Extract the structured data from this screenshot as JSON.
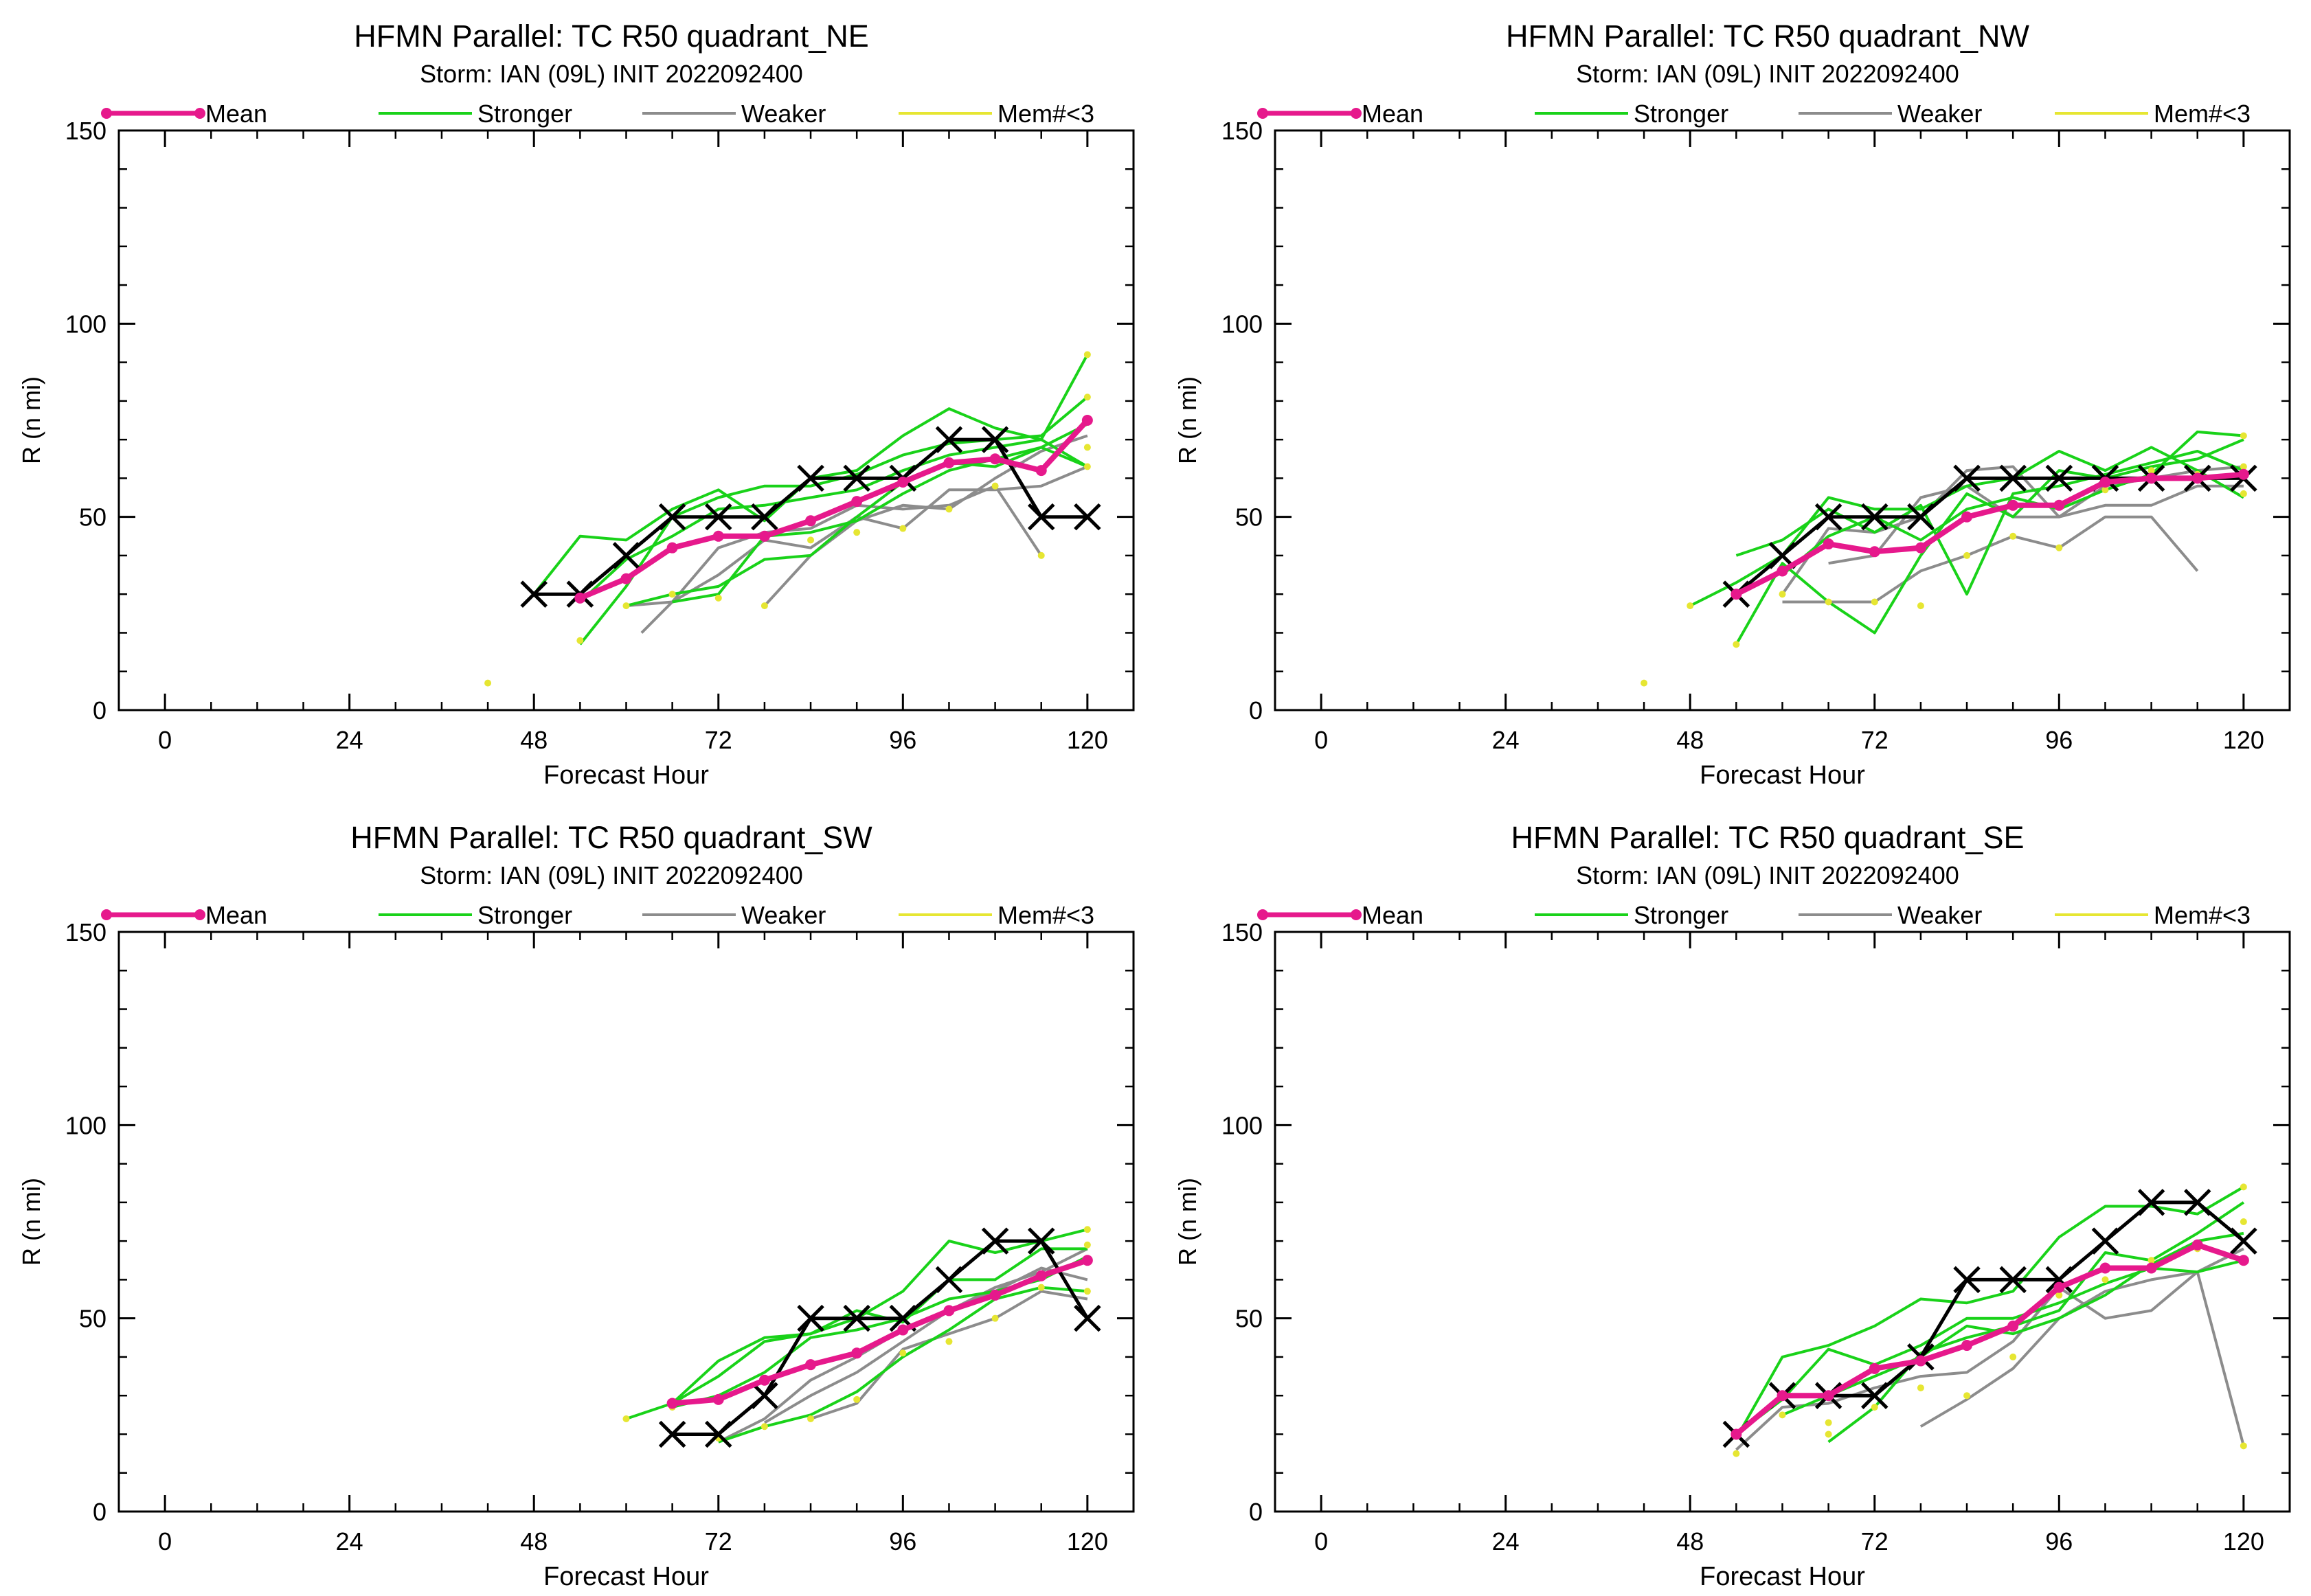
{
  "figure": {
    "xlabel": "Forecast Hour",
    "ylabel": "R (n mi)"
  },
  "colors": {
    "mean": "#e6198c",
    "stronger": "#19d219",
    "weaker": "#8c8c8c",
    "mem": "#e6e632",
    "best_track": "#000000"
  },
  "legend": [
    {
      "key": "mean",
      "label": "Mean"
    },
    {
      "key": "stronger",
      "label": "Stronger"
    },
    {
      "key": "weaker",
      "label": "Weaker"
    },
    {
      "key": "mem",
      "label": "Mem#<3"
    }
  ],
  "chart_data": [
    {
      "type": "line",
      "title": "HFMN Parallel: TC  R50 quadrant_NE",
      "subtitle": "Storm: IAN (09L) INIT 2022092400",
      "xlabel": "Forecast Hour",
      "ylabel": "R (n mi)",
      "xlim": [
        -6,
        126
      ],
      "ylim": [
        0,
        150
      ],
      "xticks": [
        0,
        24,
        48,
        72,
        96,
        120
      ],
      "yticks": [
        0,
        50,
        100,
        150
      ],
      "mean": {
        "x": [
          54,
          60,
          66,
          72,
          78,
          84,
          90,
          96,
          102,
          108,
          114,
          120
        ],
        "y": [
          29,
          34,
          42,
          45,
          45,
          49,
          54,
          59,
          64,
          65,
          62,
          75
        ]
      },
      "best_track": {
        "x": [
          48,
          54,
          60,
          66,
          72,
          78,
          84,
          90,
          96,
          102,
          108,
          114,
          120
        ],
        "y": [
          30,
          30,
          40,
          50,
          50,
          50,
          60,
          60,
          60,
          70,
          70,
          50,
          50
        ]
      },
      "stronger": [
        {
          "x": [
            48,
            54,
            60,
            66,
            72,
            78,
            84,
            90,
            96,
            102,
            108,
            114,
            120
          ],
          "y": [
            30,
            45,
            44,
            52,
            57,
            49,
            60,
            62,
            71,
            78,
            73,
            70,
            92
          ]
        },
        {
          "x": [
            54,
            60,
            66,
            72,
            78,
            84,
            90,
            96,
            102,
            108,
            114,
            120
          ],
          "y": [
            17,
            32,
            50,
            55,
            58,
            58,
            61,
            66,
            69,
            70,
            71,
            81
          ]
        },
        {
          "x": [
            54,
            60,
            66,
            72,
            78,
            84,
            90,
            96,
            102,
            108,
            114,
            120
          ],
          "y": [
            28,
            39,
            45,
            52,
            53,
            55,
            57,
            62,
            66,
            68,
            70,
            63
          ]
        },
        {
          "x": [
            60,
            66,
            72,
            78,
            84,
            90,
            96,
            102,
            108,
            114,
            120
          ],
          "y": [
            27,
            30,
            32,
            39,
            40,
            50,
            59,
            64,
            63,
            68,
            74
          ]
        },
        {
          "x": [
            66,
            72,
            78,
            84,
            90,
            96,
            102,
            108,
            114,
            120
          ],
          "y": [
            28,
            30,
            45,
            46,
            49,
            56,
            62,
            65,
            68,
            63
          ]
        }
      ],
      "weaker": [
        {
          "x": [
            60,
            66,
            72,
            78,
            84,
            90,
            96,
            102,
            108,
            114
          ],
          "y": [
            27,
            28,
            42,
            46,
            47,
            53,
            52,
            53,
            58,
            40
          ]
        },
        {
          "x": [
            62,
            66,
            72,
            78,
            84,
            90,
            96,
            102,
            108,
            114,
            120
          ],
          "y": [
            20,
            28,
            35,
            44,
            42,
            50,
            47,
            57,
            57,
            58,
            63
          ]
        },
        {
          "x": [
            78,
            84,
            90,
            96,
            102,
            108,
            114,
            120
          ],
          "y": [
            27,
            40,
            49,
            53,
            52,
            60,
            67,
            71
          ]
        }
      ],
      "mem_points": {
        "x": [
          42,
          54,
          60,
          66,
          72,
          78,
          84,
          90,
          96,
          102,
          108,
          114,
          120,
          120,
          120,
          120
        ],
        "y": [
          7,
          18,
          27,
          30,
          29,
          27,
          44,
          46,
          47,
          52,
          58,
          40,
          92,
          81,
          63,
          68
        ]
      }
    },
    {
      "type": "line",
      "title": "HFMN Parallel: TC  R50 quadrant_NW",
      "subtitle": "Storm: IAN (09L) INIT 2022092400",
      "xlabel": "Forecast Hour",
      "ylabel": "R (n mi)",
      "xlim": [
        -6,
        126
      ],
      "ylim": [
        0,
        150
      ],
      "xticks": [
        0,
        24,
        48,
        72,
        96,
        120
      ],
      "yticks": [
        0,
        50,
        100,
        150
      ],
      "mean": {
        "x": [
          54,
          60,
          66,
          72,
          78,
          84,
          90,
          96,
          102,
          108,
          114,
          120
        ],
        "y": [
          30,
          36,
          43,
          41,
          42,
          50,
          53,
          53,
          59,
          60,
          60,
          61
        ]
      },
      "best_track": {
        "x": [
          54,
          60,
          66,
          72,
          78,
          84,
          90,
          96,
          102,
          108,
          114,
          120
        ],
        "y": [
          30,
          40,
          50,
          50,
          50,
          60,
          60,
          60,
          60,
          60,
          60,
          60
        ]
      },
      "stronger": [
        {
          "x": [
            48,
            54,
            60,
            66,
            72,
            78,
            84,
            90,
            96,
            102,
            108,
            114,
            120
          ],
          "y": [
            27,
            33,
            40,
            55,
            52,
            52,
            58,
            60,
            67,
            62,
            68,
            62,
            55
          ]
        },
        {
          "x": [
            54,
            60,
            66,
            72,
            78,
            84,
            90,
            96,
            102,
            108,
            114,
            120
          ],
          "y": [
            40,
            44,
            52,
            46,
            53,
            30,
            56,
            58,
            61,
            64,
            67,
            62
          ]
        },
        {
          "x": [
            54,
            60,
            66,
            72,
            78,
            84,
            90,
            96,
            102,
            108,
            114,
            120
          ],
          "y": [
            17,
            38,
            28,
            20,
            40,
            56,
            50,
            62,
            60,
            63,
            65,
            70
          ]
        },
        {
          "x": [
            60,
            66,
            72,
            78,
            84,
            90,
            96,
            102,
            108,
            114,
            120
          ],
          "y": [
            35,
            45,
            50,
            44,
            52,
            55,
            52,
            57,
            61,
            72,
            71
          ]
        }
      ],
      "weaker": [
        {
          "x": [
            60,
            66,
            72,
            78,
            84,
            90,
            96,
            102,
            108,
            114
          ],
          "y": [
            28,
            28,
            28,
            36,
            40,
            45,
            42,
            50,
            50,
            36
          ]
        },
        {
          "x": [
            60,
            66,
            72,
            78,
            84,
            90,
            96,
            102,
            108,
            114,
            120
          ],
          "y": [
            30,
            47,
            46,
            50,
            62,
            63,
            50,
            53,
            53,
            58,
            58
          ]
        },
        {
          "x": [
            66,
            72,
            78,
            84,
            90,
            96,
            102,
            108,
            114,
            120
          ],
          "y": [
            38,
            40,
            55,
            58,
            50,
            50,
            58,
            60,
            62,
            63
          ]
        }
      ],
      "mem_points": {
        "x": [
          42,
          48,
          54,
          60,
          66,
          72,
          78,
          84,
          90,
          96,
          102,
          108,
          114,
          120,
          120,
          120
        ],
        "y": [
          7,
          27,
          17,
          30,
          28,
          28,
          27,
          40,
          45,
          42,
          57,
          62,
          61,
          56,
          71,
          63
        ]
      }
    },
    {
      "type": "line",
      "title": "HFMN Parallel: TC  R50 quadrant_SW",
      "subtitle": "Storm: IAN (09L) INIT 2022092400",
      "xlabel": "Forecast Hour",
      "ylabel": "R (n mi)",
      "xlim": [
        -6,
        126
      ],
      "ylim": [
        0,
        150
      ],
      "xticks": [
        0,
        24,
        48,
        72,
        96,
        120
      ],
      "yticks": [
        0,
        50,
        100,
        150
      ],
      "mean": {
        "x": [
          66,
          72,
          78,
          84,
          90,
          96,
          102,
          108,
          114,
          120
        ],
        "y": [
          28,
          29,
          34,
          38,
          41,
          47,
          52,
          56,
          61,
          65
        ]
      },
      "best_track": {
        "x": [
          66,
          72,
          78,
          84,
          90,
          96,
          102,
          108,
          114,
          120
        ],
        "y": [
          20,
          20,
          30,
          50,
          50,
          50,
          60,
          70,
          70,
          50
        ]
      },
      "stronger": [
        {
          "x": [
            60,
            66,
            72,
            78,
            84,
            90,
            96,
            102,
            108,
            114,
            120
          ],
          "y": [
            24,
            28,
            39,
            45,
            46,
            50,
            57,
            70,
            67,
            70,
            73
          ]
        },
        {
          "x": [
            66,
            72,
            78,
            84,
            90,
            96,
            102,
            108,
            114,
            120
          ],
          "y": [
            28,
            35,
            44,
            46,
            52,
            49,
            60,
            60,
            68,
            68
          ]
        },
        {
          "x": [
            66,
            72,
            78,
            84,
            90,
            96,
            102,
            108,
            114,
            120
          ],
          "y": [
            27,
            30,
            36,
            45,
            47,
            50,
            55,
            57,
            60,
            66
          ]
        },
        {
          "x": [
            72,
            78,
            84,
            90,
            96,
            102,
            108,
            114,
            120
          ],
          "y": [
            18,
            22,
            25,
            31,
            40,
            47,
            55,
            58,
            57
          ]
        }
      ],
      "weaker": [
        {
          "x": [
            84,
            90,
            96,
            102,
            108,
            114,
            120
          ],
          "y": [
            24,
            28,
            42,
            46,
            50,
            57,
            55
          ]
        },
        {
          "x": [
            78,
            84,
            90,
            96,
            102,
            108,
            114,
            120
          ],
          "y": [
            23,
            30,
            36,
            44,
            52,
            58,
            62,
            68
          ]
        },
        {
          "x": [
            72,
            78,
            84,
            90,
            96,
            102,
            108,
            114,
            120
          ],
          "y": [
            18,
            24,
            34,
            40,
            47,
            52,
            57,
            63,
            60
          ]
        }
      ],
      "mem_points": {
        "x": [
          60,
          66,
          72,
          78,
          84,
          90,
          96,
          102,
          108,
          114,
          120,
          120,
          120
        ],
        "y": [
          24,
          27,
          19,
          22,
          24,
          29,
          41,
          44,
          50,
          58,
          73,
          57,
          69
        ]
      }
    },
    {
      "type": "line",
      "title": "HFMN Parallel: TC  R50 quadrant_SE",
      "subtitle": "Storm: IAN (09L) INIT 2022092400",
      "xlabel": "Forecast Hour",
      "ylabel": "R (n mi)",
      "xlim": [
        -6,
        126
      ],
      "ylim": [
        0,
        150
      ],
      "xticks": [
        0,
        24,
        48,
        72,
        96,
        120
      ],
      "yticks": [
        0,
        50,
        100,
        150
      ],
      "mean": {
        "x": [
          54,
          60,
          66,
          72,
          78,
          84,
          90,
          96,
          102,
          108,
          114,
          120
        ],
        "y": [
          20,
          30,
          30,
          37,
          39,
          43,
          48,
          58,
          63,
          63,
          69,
          65
        ]
      },
      "best_track": {
        "x": [
          54,
          60,
          66,
          72,
          78,
          84,
          90,
          96,
          102,
          108,
          114,
          120
        ],
        "y": [
          20,
          30,
          30,
          30,
          40,
          60,
          60,
          60,
          70,
          80,
          80,
          70
        ]
      },
      "stronger": [
        {
          "x": [
            54,
            60,
            66,
            72,
            78,
            84,
            90,
            96,
            102,
            108,
            114,
            120
          ],
          "y": [
            19,
            40,
            43,
            48,
            55,
            54,
            57,
            71,
            79,
            79,
            77,
            84
          ]
        },
        {
          "x": [
            54,
            60,
            66,
            72,
            78,
            84,
            90,
            96,
            102,
            108,
            114,
            120
          ],
          "y": [
            20,
            29,
            42,
            38,
            43,
            50,
            50,
            54,
            59,
            63,
            62,
            65
          ]
        },
        {
          "x": [
            60,
            66,
            72,
            78,
            84,
            90,
            96,
            102,
            108,
            114,
            120
          ],
          "y": [
            25,
            30,
            35,
            40,
            48,
            46,
            50,
            56,
            64,
            70,
            72
          ]
        },
        {
          "x": [
            66,
            72,
            78,
            84,
            90,
            96,
            102,
            108,
            114,
            120
          ],
          "y": [
            18,
            27,
            41,
            45,
            48,
            52,
            67,
            65,
            72,
            80
          ]
        }
      ],
      "weaker": [
        {
          "x": [
            54,
            60,
            66,
            72,
            78,
            84,
            90,
            96,
            102,
            108,
            114,
            120
          ],
          "y": [
            16,
            27,
            28,
            32,
            35,
            36,
            44,
            58,
            50,
            52,
            62,
            17
          ]
        },
        {
          "x": [
            78,
            84,
            90,
            96,
            102,
            108,
            114,
            120
          ],
          "y": [
            22,
            29,
            37,
            50,
            57,
            60,
            62,
            68
          ]
        }
      ],
      "mem_points": {
        "x": [
          54,
          60,
          66,
          66,
          72,
          78,
          84,
          90,
          96,
          102,
          108,
          114,
          120,
          120,
          120
        ],
        "y": [
          15,
          25,
          23,
          20,
          27,
          32,
          30,
          40,
          56,
          60,
          65,
          68,
          84,
          75,
          17
        ]
      }
    }
  ]
}
